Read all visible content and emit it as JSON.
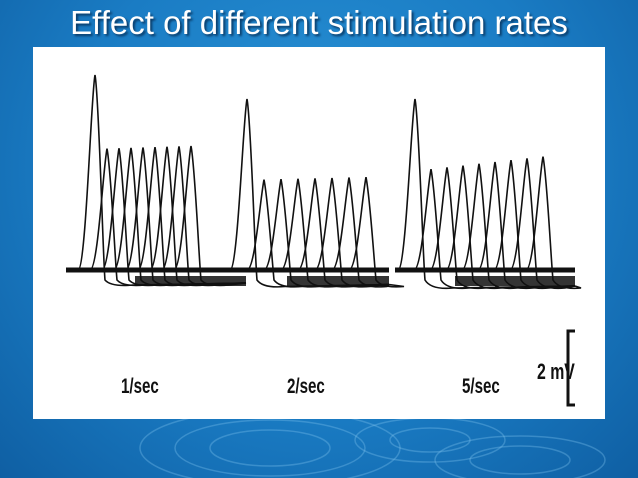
{
  "slide": {
    "title": "Effect of different stimulation rates"
  },
  "figure": {
    "panels": [
      {
        "label": "1/sec",
        "first_peak": 1.0,
        "train_peak": 0.62,
        "undershoot": 0.3
      },
      {
        "label": "2/sec",
        "first_peak": 0.95,
        "train_peak": 0.5,
        "undershoot": 0.35
      },
      {
        "label": "5/sec",
        "first_peak": 0.95,
        "train_peak": 0.55,
        "undershoot": 0.4
      }
    ],
    "scale_bar": {
      "label": "2 mV"
    }
  },
  "colors": {
    "background": "#1a7cc4",
    "panel": "#ffffff",
    "ink": "#111111",
    "title": "#ffffff"
  }
}
